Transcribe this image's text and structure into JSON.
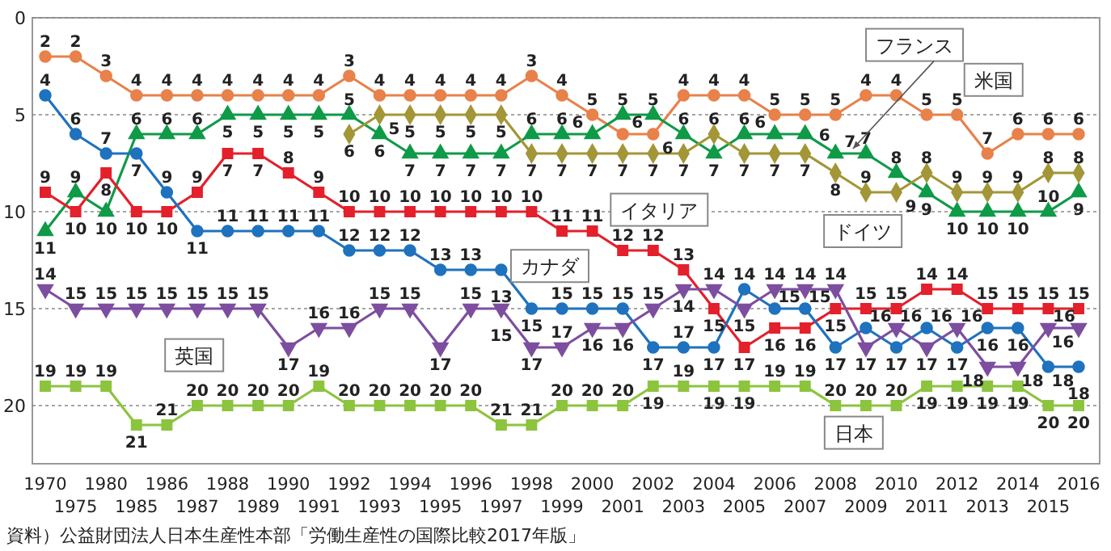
{
  "chart_data": {
    "type": "line",
    "categories": [
      "1970",
      "1975",
      "1980",
      "1985",
      "1986",
      "1987",
      "1988",
      "1989",
      "1990",
      "1991",
      "1992",
      "1993",
      "1994",
      "1995",
      "1996",
      "1997",
      "1998",
      "1999",
      "2000",
      "2001",
      "2002",
      "2003",
      "2004",
      "2005",
      "2006",
      "2007",
      "2008",
      "2009",
      "2010",
      "2011",
      "2012",
      "2013",
      "2014",
      "2015",
      "2016"
    ],
    "ylim": [
      23,
      0
    ],
    "yticks": [
      0,
      5,
      10,
      15,
      20
    ],
    "grid": "y",
    "data_labels": true,
    "legend": false,
    "annotations": [
      "資料）公益財団法人日本生産性本部「労働生産性の国際比較2017年版」"
    ],
    "series": [
      {
        "name": "米国",
        "color": "#e8814a",
        "marker": "circle",
        "values": [
          2,
          2,
          3,
          4,
          4,
          4,
          4,
          4,
          4,
          4,
          3,
          4,
          4,
          4,
          4,
          4,
          3,
          4,
          5,
          6,
          6,
          4,
          4,
          4,
          5,
          5,
          5,
          4,
          4,
          5,
          5,
          7,
          6,
          6,
          6
        ]
      },
      {
        "name": "フランス",
        "color": "#0f9a48",
        "marker": "triangle",
        "values": [
          11,
          9,
          10,
          6,
          6,
          6,
          5,
          5,
          5,
          5,
          5,
          6,
          7,
          7,
          7,
          7,
          6,
          6,
          6,
          5,
          5,
          6,
          7,
          6,
          6,
          6,
          7,
          7,
          8,
          9,
          10,
          10,
          10,
          10,
          9
        ]
      },
      {
        "name": "ドイツ",
        "color": "#a39637",
        "marker": "diamond",
        "values": [
          null,
          null,
          null,
          null,
          null,
          null,
          null,
          null,
          null,
          null,
          6,
          5,
          5,
          5,
          5,
          5,
          7,
          7,
          7,
          7,
          7,
          7,
          6,
          7,
          7,
          7,
          8,
          9,
          9,
          8,
          9,
          9,
          9,
          8,
          8
        ]
      },
      {
        "name": "イタリア",
        "color": "#e3202b",
        "marker": "square",
        "values": [
          9,
          10,
          8,
          10,
          10,
          9,
          7,
          7,
          8,
          9,
          10,
          10,
          10,
          10,
          10,
          10,
          10,
          11,
          11,
          12,
          12,
          13,
          15,
          17,
          16,
          16,
          15,
          15,
          15,
          14,
          14,
          15,
          15,
          15,
          15
        ]
      },
      {
        "name": "カナダ",
        "color": "#1f72bd",
        "marker": "circle",
        "values": [
          4,
          6,
          7,
          7,
          9,
          11,
          11,
          11,
          11,
          11,
          12,
          12,
          12,
          13,
          13,
          13,
          15,
          15,
          15,
          15,
          17,
          17,
          17,
          14,
          15,
          15,
          17,
          16,
          17,
          16,
          17,
          16,
          16,
          18,
          18
        ]
      },
      {
        "name": "英国",
        "color": "#7d4e9f",
        "marker": "triangle-down",
        "values": [
          14,
          15,
          15,
          15,
          15,
          15,
          15,
          15,
          17,
          16,
          16,
          15,
          15,
          17,
          15,
          15,
          17,
          17,
          16,
          16,
          15,
          14,
          14,
          15,
          14,
          14,
          14,
          17,
          16,
          17,
          16,
          18,
          18,
          16,
          16
        ]
      },
      {
        "name": "日本",
        "color": "#8cc43e",
        "marker": "square",
        "values": [
          19,
          19,
          19,
          21,
          21,
          20,
          20,
          20,
          20,
          19,
          20,
          20,
          20,
          20,
          20,
          21,
          21,
          20,
          20,
          20,
          19,
          19,
          19,
          19,
          19,
          19,
          20,
          20,
          20,
          19,
          19,
          19,
          19,
          20,
          20
        ]
      }
    ]
  }
}
